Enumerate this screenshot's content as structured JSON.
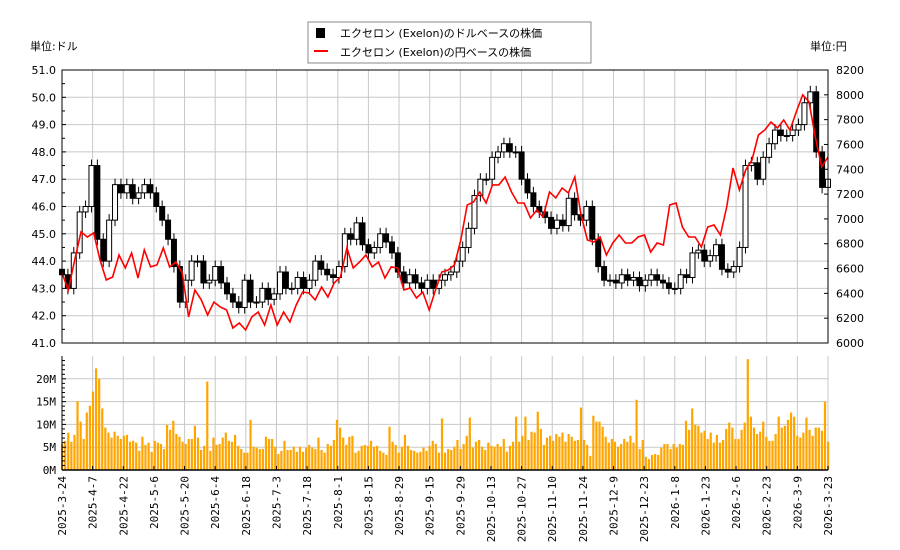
{
  "chart_data": {
    "type": "candlestick+line+bar",
    "left_unit_label": "単位:ドル",
    "right_unit_label": "単位:円",
    "legend": [
      {
        "label": "エクセロン (Exelon)のドルベースの株価",
        "color": "#000000",
        "marker": "square"
      },
      {
        "label": "エクセロン (Exelon)の円ベースの株価",
        "color": "#ff0000",
        "marker": "line"
      }
    ],
    "legend_placement": "top-center",
    "usd_axis": {
      "min": 41.0,
      "max": 51.0,
      "ticks": [
        "41.0",
        "42.0",
        "43.0",
        "44.0",
        "45.0",
        "46.0",
        "47.0",
        "48.0",
        "49.0",
        "50.0",
        "51.0"
      ]
    },
    "jpy_axis": {
      "min": 6000,
      "max": 8200,
      "ticks": [
        "6000",
        "6200",
        "6400",
        "6600",
        "6800",
        "7000",
        "7200",
        "7400",
        "7600",
        "7800",
        "8000",
        "8200"
      ]
    },
    "volume_axis": {
      "min": 0,
      "max": 25,
      "ticks": [
        "0M",
        "5M",
        "10M",
        "15M",
        "20M"
      ]
    },
    "grid": true,
    "trading_days": 251,
    "x_tick_every_days": 10,
    "x_ticks": [
      "2025-3-24",
      "2025-4-7",
      "2025-4-22",
      "2025-5-6",
      "2025-5-20",
      "2025-6-4",
      "2025-6-18",
      "2025-7-3",
      "2025-7-18",
      "2025-8-1",
      "2025-8-15",
      "2025-8-29",
      "2025-9-15",
      "2025-9-29",
      "2025-10-13",
      "2025-10-27",
      "2025-11-10",
      "2025-11-24",
      "2025-12-9",
      "2025-12-23",
      "2026-1-8",
      "2026-1-23",
      "2026-2-6",
      "2026-2-23",
      "2026-3-9",
      "2026-3-23"
    ],
    "usd_close": [
      43.5,
      43.0,
      44.3,
      45.8,
      46.0,
      47.5,
      44.8,
      44.0,
      45.5,
      46.8,
      46.5,
      46.8,
      46.3,
      46.5,
      46.8,
      46.5,
      46.0,
      45.5,
      44.8,
      43.8,
      42.5,
      43.3,
      44.0,
      44.0,
      43.2,
      43.3,
      43.8,
      43.2,
      42.8,
      42.5,
      42.3,
      43.3,
      42.5,
      42.5,
      43.0,
      42.6,
      42.8,
      43.6,
      43.0,
      43.0,
      43.4,
      43.0,
      43.3,
      44.0,
      43.7,
      43.5,
      43.4,
      43.8,
      45.0,
      44.8,
      45.4,
      44.6,
      44.3,
      44.5,
      45.0,
      44.7,
      44.3,
      43.6,
      43.2,
      43.5,
      43.2,
      43.0,
      43.3,
      43.0,
      43.3,
      43.5,
      43.6,
      44.0,
      44.5,
      45.2,
      46.4,
      47.0,
      47.0,
      47.8,
      48.0,
      48.3,
      48.0,
      48.0,
      47.0,
      46.5,
      46.0,
      45.8,
      45.6,
      45.2,
      45.5,
      45.3,
      46.3,
      45.7,
      45.5,
      46.0,
      44.8,
      43.8,
      43.3,
      43.3,
      43.2,
      43.5,
      43.3,
      43.4,
      43.1,
      43.3,
      43.5,
      43.3,
      43.2,
      43.0,
      43.0,
      43.5,
      43.4,
      44.3,
      44.4,
      44.0,
      44.2,
      44.6,
      43.7,
      43.6,
      43.8,
      44.5,
      47.5,
      47.6,
      47.0,
      47.8,
      48.3,
      48.8,
      48.6,
      48.6,
      48.8,
      49.0,
      49.8,
      50.2,
      48.0,
      46.7,
      47.0
    ],
    "jpy_close": [
      6564,
      6427,
      6669,
      6895,
      6854,
      6887,
      6669,
      6508,
      6532,
      6709,
      6605,
      6725,
      6524,
      6750,
      6613,
      6629,
      6766,
      6613,
      6653,
      6564,
      6210,
      6427,
      6347,
      6226,
      6330,
      6290,
      6266,
      6121,
      6161,
      6105,
      6210,
      6250,
      6145,
      6306,
      6145,
      6250,
      6169,
      6306,
      6411,
      6403,
      6347,
      6451,
      6371,
      6484,
      6532,
      6766,
      6605,
      6653,
      6709,
      6613,
      6653,
      6524,
      6613,
      6605,
      6427,
      6443,
      6363,
      6411,
      6266,
      6427,
      6572,
      6588,
      6629,
      6830,
      7112,
      7136,
      7217,
      7128,
      7274,
      7274,
      7338,
      7217,
      7128,
      7128,
      7007,
      7072,
      7015,
      7217,
      7169,
      7249,
      7209,
      7338,
      7031,
      6830,
      6814,
      6854,
      6709,
      6806,
      6870,
      6806,
      6806,
      6854,
      6870,
      6733,
      6806,
      6790,
      7112,
      7128,
      6935,
      6854,
      6854,
      6774,
      6935,
      6951,
      6870,
      7096,
      7410,
      7233,
      7394,
      7475,
      7676,
      7716,
      7781,
      7733,
      7797,
      7716,
      7862,
      7999,
      7943,
      7660,
      7419,
      7499
    ],
    "volume_m": [
      5.7,
      6.4,
      8.2,
      6.2,
      7.7,
      15.1,
      10.6,
      6.8,
      12.6,
      14.1,
      17.2,
      22.3,
      20.0,
      13.5,
      9.3,
      8.2,
      7.1,
      8.4,
      7.5,
      6.8,
      7.5,
      7.7,
      6.2,
      6.4,
      6.0,
      4.2,
      7.3,
      5.5,
      6.0,
      4.0,
      6.4,
      6.0,
      5.7,
      4.6,
      9.9,
      8.8,
      10.8,
      7.9,
      7.3,
      6.2,
      5.7,
      6.8,
      6.8,
      9.7,
      7.1,
      4.4,
      5.3,
      19.4,
      4.2,
      7.1,
      5.5,
      5.7,
      7.1,
      8.2,
      6.4,
      6.2,
      7.7,
      5.3,
      4.6,
      3.8,
      3.8,
      11.0,
      5.1,
      4.9,
      4.6,
      4.6,
      7.3,
      6.8,
      6.8,
      5.1,
      3.5,
      4.2,
      6.4,
      4.4,
      4.4,
      5.1,
      4.0,
      5.1,
      4.0,
      4.9,
      5.5,
      4.9,
      4.6,
      7.1,
      4.4,
      3.8,
      5.7,
      5.3,
      6.6,
      11.0,
      9.3,
      7.1,
      5.5,
      7.3,
      7.5,
      3.8,
      4.2,
      5.3,
      5.5,
      5.3,
      6.4,
      5.1,
      5.3,
      4.2,
      3.8,
      3.3,
      9.5,
      6.2,
      5.5,
      3.8,
      5.1,
      7.7,
      5.3,
      4.4,
      4.2,
      3.8,
      4.0,
      4.9,
      4.2,
      5.3,
      6.4,
      5.7,
      3.8,
      11.3,
      3.8,
      4.6,
      4.4,
      5.1,
      6.6,
      4.6,
      5.7,
      7.5,
      11.5,
      4.9,
      6.2,
      6.6,
      5.1,
      4.4,
      6.0,
      5.3,
      5.1,
      5.7,
      5.1,
      6.8,
      4.0,
      5.3,
      6.2,
      11.7,
      6.2,
      7.5,
      11.7,
      6.6,
      8.4,
      8.2,
      12.8,
      9.0,
      5.5,
      7.1,
      7.5,
      6.4,
      7.9,
      7.3,
      8.2,
      6.2,
      7.9,
      7.3,
      6.4,
      6.6,
      13.7,
      6.6,
      5.5,
      3.1,
      11.9,
      10.6,
      10.6,
      9.5,
      7.3,
      6.0,
      6.8,
      6.2,
      5.1,
      5.7,
      6.8,
      6.2,
      7.5,
      6.0,
      15.4,
      4.6,
      6.6,
      2.9,
      2.4,
      3.3,
      3.5,
      3.3,
      4.9,
      5.7,
      5.7,
      4.6,
      5.7,
      4.9,
      5.7,
      5.5,
      10.8,
      8.8,
      13.5,
      9.9,
      9.7,
      8.2,
      8.6,
      6.8,
      8.2,
      6.0,
      7.7,
      6.0,
      6.6,
      9.0,
      10.4,
      9.3,
      6.8,
      6.8,
      8.8,
      10.4,
      24.3,
      11.7,
      9.3,
      7.9,
      8.4,
      10.6,
      7.3,
      6.4,
      6.4,
      7.9,
      11.7,
      9.3,
      9.7,
      11.0,
      12.6,
      11.7,
      7.5,
      7.1,
      8.2,
      11.5,
      8.8,
      7.5,
      9.3,
      9.3,
      8.6,
      15.0,
      6.2
    ],
    "colors": {
      "usd": "#000000",
      "jpy": "#ff0000",
      "volume": "#ffa500",
      "grid": "#c8c8c8"
    }
  }
}
